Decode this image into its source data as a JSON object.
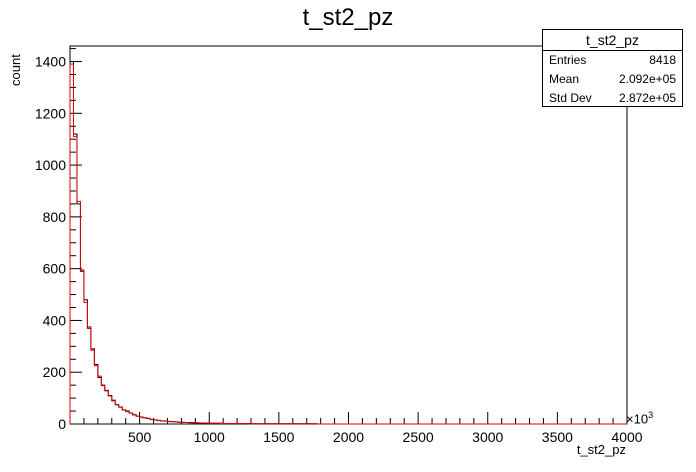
{
  "chart_data": {
    "type": "bar",
    "title": "t_st2_pz",
    "xlabel": "t_st2_pz",
    "ylabel": "count",
    "x_multiplier_label": "×10",
    "x_multiplier_exp": "3",
    "xlim": [
      0,
      4000
    ],
    "ylim": [
      0,
      1460
    ],
    "x_ticks": [
      500,
      1000,
      1500,
      2000,
      2500,
      3000,
      3500,
      4000
    ],
    "y_ticks": [
      0,
      200,
      400,
      600,
      800,
      1000,
      1200,
      1400
    ],
    "bin_width": 25,
    "x_start": 0,
    "series": [
      {
        "name": "black",
        "color": "#000000",
        "values": [
          1400,
          1120,
          850,
          590,
          480,
          370,
          290,
          230,
          180,
          150,
          130,
          110,
          90,
          75,
          65,
          55,
          50,
          42,
          36,
          30,
          27,
          24,
          21,
          18,
          16,
          14,
          12,
          11,
          10,
          9,
          8,
          7,
          7,
          6,
          6,
          5,
          5,
          4,
          4,
          4,
          3,
          3,
          3,
          3,
          2,
          2,
          2,
          2,
          2,
          2,
          2,
          2,
          1,
          1,
          1,
          1,
          1,
          1,
          1,
          1,
          1,
          1,
          1,
          1,
          1,
          1,
          1,
          1,
          1,
          1,
          1,
          0,
          0,
          0,
          0,
          0,
          0,
          0,
          0,
          0,
          0,
          0,
          0,
          0,
          0,
          0,
          0,
          0,
          0,
          0,
          0,
          0,
          0,
          0,
          0,
          0,
          0,
          0,
          0,
          0,
          0,
          0,
          0,
          0,
          0,
          0,
          0,
          0,
          0,
          0,
          0,
          0,
          0,
          0,
          0,
          0,
          0,
          0,
          0,
          0,
          0,
          0,
          0,
          0,
          0,
          0,
          0,
          0,
          0,
          0,
          0,
          0,
          0,
          0,
          0,
          0,
          0,
          0,
          0,
          0,
          0,
          0,
          0,
          0,
          0,
          0,
          0,
          0,
          0,
          0,
          0,
          0,
          0,
          0,
          0,
          0,
          0,
          0,
          0,
          0
        ]
      },
      {
        "name": "red",
        "color": "#e00000",
        "values": [
          1390,
          1110,
          860,
          595,
          470,
          375,
          285,
          225,
          185,
          148,
          128,
          108,
          92,
          74,
          66,
          54,
          48,
          43,
          35,
          31,
          26,
          23,
          22,
          17,
          16,
          13,
          12,
          11,
          9,
          9,
          8,
          7,
          6,
          6,
          5,
          5,
          4,
          4,
          4,
          3,
          3,
          3,
          3,
          2,
          2,
          2,
          2,
          2,
          2,
          2,
          2,
          1,
          1,
          1,
          1,
          1,
          1,
          1,
          1,
          1,
          1,
          1,
          1,
          1,
          1,
          1,
          1,
          1,
          1,
          1,
          1,
          0,
          0,
          0,
          0,
          0,
          0,
          0,
          0,
          0,
          0,
          0,
          0,
          0,
          0,
          0,
          0,
          0,
          0,
          0,
          0,
          0,
          0,
          0,
          0,
          0,
          0,
          0,
          0,
          0,
          0,
          0,
          0,
          0,
          0,
          0,
          0,
          0,
          0,
          0,
          0,
          0,
          0,
          0,
          0,
          0,
          0,
          0,
          0,
          0,
          0,
          0,
          0,
          0,
          0,
          0,
          0,
          0,
          0,
          0,
          0,
          0,
          0,
          0,
          0,
          0,
          0,
          0,
          0,
          0,
          0,
          0,
          0,
          0,
          0,
          0,
          0,
          0,
          0,
          0,
          0,
          0,
          0,
          0,
          0,
          0,
          0,
          0,
          0,
          0
        ]
      }
    ]
  },
  "stats_box": {
    "title": "t_st2_pz",
    "rows": [
      {
        "label": "Entries",
        "value": "8418"
      },
      {
        "label": "Mean",
        "value": "2.092e+05"
      },
      {
        "label": "Std Dev",
        "value": "2.872e+05"
      }
    ]
  }
}
